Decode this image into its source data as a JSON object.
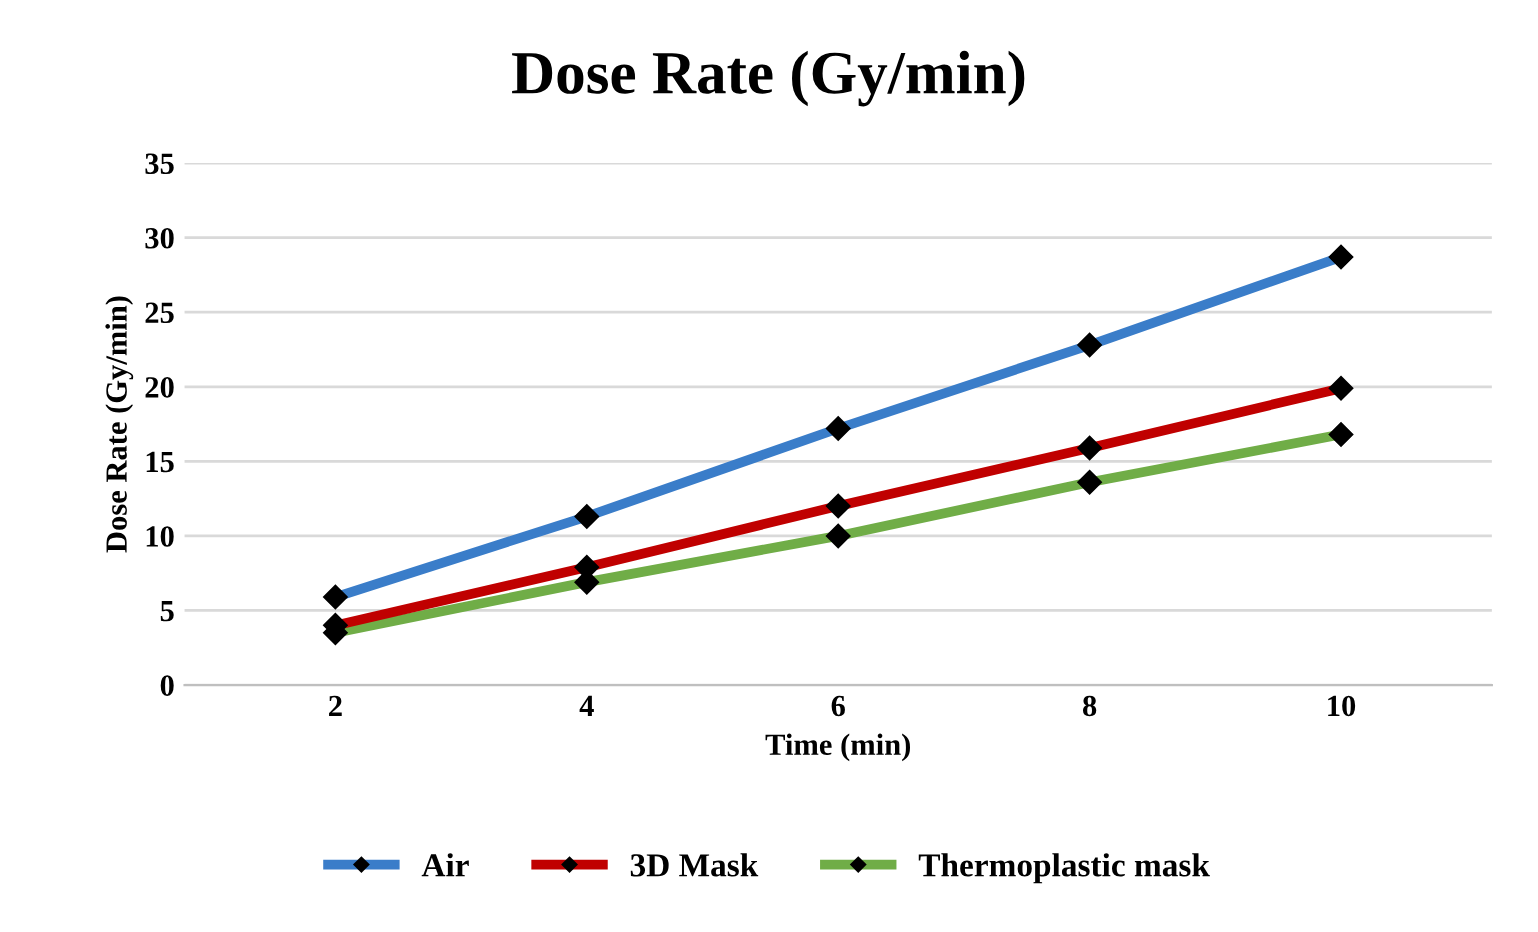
{
  "chart_data": {
    "type": "line",
    "title": "Dose Rate (Gy/min)",
    "xlabel": "Time (min)",
    "ylabel": "Dose Rate (Gy/min)",
    "categories": [
      "2",
      "4",
      "6",
      "8",
      "10"
    ],
    "series": [
      {
        "name": "Air",
        "color": "#3a7dc9",
        "values": [
          5.9,
          11.3,
          17.2,
          22.8,
          28.7
        ]
      },
      {
        "name": "3D Mask",
        "color": "#c00000",
        "values": [
          4.0,
          7.9,
          12.0,
          15.9,
          19.9
        ]
      },
      {
        "name": "Thermoplastic mask",
        "color": "#70ad47",
        "values": [
          3.5,
          6.9,
          10.0,
          13.6,
          16.8
        ]
      }
    ],
    "ylim": [
      0,
      35
    ],
    "yticks": [
      0,
      5,
      10,
      15,
      20,
      25,
      30,
      35
    ],
    "grid": "y",
    "legend": "bottom",
    "marker": "diamond",
    "line_style": "solid"
  }
}
